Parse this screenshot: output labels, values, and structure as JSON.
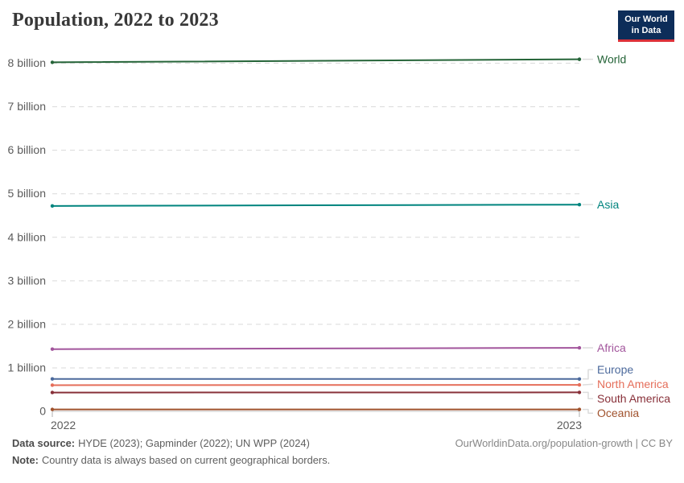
{
  "header": {
    "logo": {
      "line1": "Our World",
      "line2": "in Data"
    }
  },
  "chart_data": {
    "type": "line",
    "title": "Population, 2022 to 2023",
    "xlabel": "",
    "ylabel": "",
    "x": [
      2022,
      2023
    ],
    "x_tick_labels": [
      "2022",
      "2023"
    ],
    "unit": "billion people",
    "ylim": [
      0,
      8
    ],
    "y_ticks": [
      0,
      1,
      2,
      3,
      4,
      5,
      6,
      7,
      8
    ],
    "y_tick_labels": [
      "0",
      "1 billion",
      "2 billion",
      "3 billion",
      "4 billion",
      "5 billion",
      "6 billion",
      "7 billion",
      "8 billion"
    ],
    "grid": "horizontal-dashed",
    "legend_position": "right-end-of-line",
    "series": [
      {
        "name": "World",
        "color": "#256438",
        "values": [
          8.02,
          8.09
        ]
      },
      {
        "name": "Asia",
        "color": "#00847e",
        "values": [
          4.72,
          4.75
        ]
      },
      {
        "name": "Africa",
        "color": "#a2559c",
        "values": [
          1.43,
          1.46
        ]
      },
      {
        "name": "Europe",
        "color": "#4c6a9c",
        "values": [
          0.745,
          0.744
        ]
      },
      {
        "name": "North America",
        "color": "#e56e5a",
        "values": [
          0.602,
          0.608
        ]
      },
      {
        "name": "South America",
        "color": "#883039",
        "values": [
          0.433,
          0.436
        ]
      },
      {
        "name": "Oceania",
        "color": "#a0522d",
        "values": [
          0.044,
          0.045
        ]
      }
    ],
    "colors": {
      "axis_text": "#5b5b5b",
      "gridline": "#dadada",
      "zero_line": "#c6c6c6",
      "connector": "#dcdcdc"
    }
  },
  "footer": {
    "data_source_label": "Data source:",
    "data_source_text": "HYDE (2023); Gapminder (2022); UN WPP (2024)",
    "note_label": "Note:",
    "note_text": "Country data is always based on current geographical borders.",
    "link": "OurWorldinData.org/population-growth | CC BY"
  }
}
